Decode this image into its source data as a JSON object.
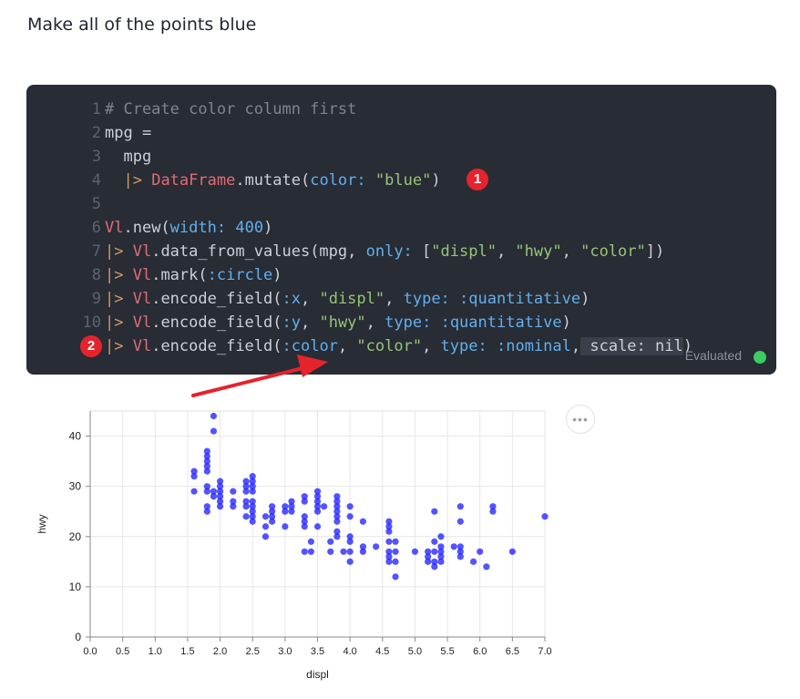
{
  "prompt": "Make all of the points blue",
  "cell": {
    "status": "Evaluated",
    "status_color": "#3dcb63",
    "badges": [
      "1",
      "2"
    ],
    "lines": [
      {
        "n": "1",
        "tokens": [
          [
            "# Create color column first",
            "comment"
          ]
        ]
      },
      {
        "n": "2",
        "tokens": [
          [
            "mpg =",
            "plain"
          ]
        ]
      },
      {
        "n": "3",
        "tokens": [
          [
            "  mpg",
            "plain"
          ]
        ]
      },
      {
        "n": "4",
        "tokens": [
          [
            "  ",
            "plain"
          ],
          [
            "|> ",
            "pipe"
          ],
          [
            "DataFrame",
            "mod"
          ],
          [
            ".mutate(",
            "plain"
          ],
          [
            "color:",
            "key"
          ],
          [
            " ",
            "plain"
          ],
          [
            "\"blue\"",
            "str"
          ],
          [
            ")",
            "plain"
          ]
        ]
      },
      {
        "n": "5",
        "tokens": []
      },
      {
        "n": "6",
        "tokens": [
          [
            "Vl",
            "mod"
          ],
          [
            ".new(",
            "plain"
          ],
          [
            "width:",
            "key"
          ],
          [
            " ",
            "plain"
          ],
          [
            "400",
            "num"
          ],
          [
            ")",
            "plain"
          ]
        ]
      },
      {
        "n": "7",
        "tokens": [
          [
            "|> ",
            "pipe"
          ],
          [
            "Vl",
            "mod"
          ],
          [
            ".data_from_values(mpg, ",
            "plain"
          ],
          [
            "only:",
            "key"
          ],
          [
            " [",
            "plain"
          ],
          [
            "\"displ\"",
            "str"
          ],
          [
            ", ",
            "plain"
          ],
          [
            "\"hwy\"",
            "str"
          ],
          [
            ", ",
            "plain"
          ],
          [
            "\"color\"",
            "str"
          ],
          [
            "])",
            "plain"
          ]
        ]
      },
      {
        "n": "8",
        "tokens": [
          [
            "|> ",
            "pipe"
          ],
          [
            "Vl",
            "mod"
          ],
          [
            ".mark(",
            "plain"
          ],
          [
            ":circle",
            "atom"
          ],
          [
            ")",
            "plain"
          ]
        ]
      },
      {
        "n": "9",
        "tokens": [
          [
            "|> ",
            "pipe"
          ],
          [
            "Vl",
            "mod"
          ],
          [
            ".encode_field(",
            "plain"
          ],
          [
            ":x",
            "atom"
          ],
          [
            ", ",
            "plain"
          ],
          [
            "\"displ\"",
            "str"
          ],
          [
            ", ",
            "plain"
          ],
          [
            "type:",
            "key"
          ],
          [
            " ",
            "plain"
          ],
          [
            ":quantitative",
            "atom"
          ],
          [
            ")",
            "plain"
          ]
        ]
      },
      {
        "n": "10",
        "tokens": [
          [
            "|> ",
            "pipe"
          ],
          [
            "Vl",
            "mod"
          ],
          [
            ".encode_field(",
            "plain"
          ],
          [
            ":y",
            "atom"
          ],
          [
            ", ",
            "plain"
          ],
          [
            "\"hwy\"",
            "str"
          ],
          [
            ", ",
            "plain"
          ],
          [
            "type:",
            "key"
          ],
          [
            " ",
            "plain"
          ],
          [
            ":quantitative",
            "atom"
          ],
          [
            ")",
            "plain"
          ]
        ]
      },
      {
        "n": "11",
        "tokens": [
          [
            "|> ",
            "pipe"
          ],
          [
            "Vl",
            "mod"
          ],
          [
            ".encode_field(",
            "plain"
          ],
          [
            ":color",
            "atom"
          ],
          [
            ", ",
            "plain"
          ],
          [
            "\"color\"",
            "str"
          ],
          [
            ", ",
            "plain"
          ],
          [
            "type:",
            "key"
          ],
          [
            " ",
            "plain"
          ],
          [
            ":nominal",
            "atom"
          ],
          [
            ",",
            "plain"
          ],
          [
            " scale: nil",
            "hl"
          ],
          [
            ")",
            "plain"
          ]
        ]
      }
    ]
  },
  "chart_data": {
    "type": "scatter",
    "xlabel": "displ",
    "ylabel": "hwy",
    "xlim": [
      0,
      7
    ],
    "ylim": [
      0,
      45
    ],
    "xticks": [
      "0.0",
      "0.5",
      "1.0",
      "1.5",
      "2.0",
      "2.5",
      "3.0",
      "3.5",
      "4.0",
      "4.5",
      "5.0",
      "5.5",
      "6.0",
      "6.5",
      "7.0"
    ],
    "yticks": [
      "0",
      "10",
      "20",
      "30",
      "40"
    ],
    "grid": true,
    "point_color": "#1a1aff",
    "points": [
      [
        1.6,
        33
      ],
      [
        1.6,
        32
      ],
      [
        1.6,
        29
      ],
      [
        1.8,
        37
      ],
      [
        1.8,
        36
      ],
      [
        1.8,
        35
      ],
      [
        1.8,
        34
      ],
      [
        1.8,
        33
      ],
      [
        1.8,
        30
      ],
      [
        1.8,
        29
      ],
      [
        1.8,
        26
      ],
      [
        1.8,
        25
      ],
      [
        1.9,
        44
      ],
      [
        1.9,
        41
      ],
      [
        1.9,
        29
      ],
      [
        1.9,
        28
      ],
      [
        2.0,
        31
      ],
      [
        2.0,
        30
      ],
      [
        2.0,
        29
      ],
      [
        2.0,
        28
      ],
      [
        2.0,
        27
      ],
      [
        2.0,
        26
      ],
      [
        2.2,
        29
      ],
      [
        2.2,
        27
      ],
      [
        2.2,
        26
      ],
      [
        2.4,
        31
      ],
      [
        2.4,
        30
      ],
      [
        2.4,
        29
      ],
      [
        2.4,
        27
      ],
      [
        2.4,
        26
      ],
      [
        2.4,
        24
      ],
      [
        2.5,
        32
      ],
      [
        2.5,
        31
      ],
      [
        2.5,
        30
      ],
      [
        2.5,
        29
      ],
      [
        2.5,
        27
      ],
      [
        2.5,
        26
      ],
      [
        2.5,
        25
      ],
      [
        2.5,
        24
      ],
      [
        2.5,
        23
      ],
      [
        2.7,
        24
      ],
      [
        2.7,
        22
      ],
      [
        2.7,
        20
      ],
      [
        2.8,
        26
      ],
      [
        2.8,
        25
      ],
      [
        2.8,
        24
      ],
      [
        2.8,
        23
      ],
      [
        3.0,
        26
      ],
      [
        3.0,
        25
      ],
      [
        3.0,
        22
      ],
      [
        3.1,
        27
      ],
      [
        3.1,
        26
      ],
      [
        3.1,
        25
      ],
      [
        3.3,
        28
      ],
      [
        3.3,
        27
      ],
      [
        3.3,
        24
      ],
      [
        3.3,
        23
      ],
      [
        3.3,
        22
      ],
      [
        3.3,
        17
      ],
      [
        3.4,
        19
      ],
      [
        3.4,
        17
      ],
      [
        3.5,
        29
      ],
      [
        3.5,
        28
      ],
      [
        3.5,
        27
      ],
      [
        3.5,
        26
      ],
      [
        3.5,
        25
      ],
      [
        3.5,
        22
      ],
      [
        3.6,
        26
      ],
      [
        3.7,
        19
      ],
      [
        3.7,
        17
      ],
      [
        3.8,
        28
      ],
      [
        3.8,
        27
      ],
      [
        3.8,
        26
      ],
      [
        3.8,
        25
      ],
      [
        3.8,
        24
      ],
      [
        3.8,
        23
      ],
      [
        3.8,
        21
      ],
      [
        3.8,
        20
      ],
      [
        3.9,
        17
      ],
      [
        4.0,
        26
      ],
      [
        4.0,
        24
      ],
      [
        4.0,
        20
      ],
      [
        4.0,
        19
      ],
      [
        4.0,
        17
      ],
      [
        4.0,
        15
      ],
      [
        4.2,
        23
      ],
      [
        4.2,
        18
      ],
      [
        4.2,
        17
      ],
      [
        4.4,
        18
      ],
      [
        4.6,
        23
      ],
      [
        4.6,
        22
      ],
      [
        4.6,
        21
      ],
      [
        4.6,
        19
      ],
      [
        4.6,
        17
      ],
      [
        4.6,
        16
      ],
      [
        4.6,
        15
      ],
      [
        4.7,
        19
      ],
      [
        4.7,
        17
      ],
      [
        4.7,
        15
      ],
      [
        4.7,
        12
      ],
      [
        5.0,
        17
      ],
      [
        5.2,
        17
      ],
      [
        5.2,
        16
      ],
      [
        5.2,
        15
      ],
      [
        5.3,
        25
      ],
      [
        5.3,
        19
      ],
      [
        5.3,
        17
      ],
      [
        5.3,
        15
      ],
      [
        5.3,
        14
      ],
      [
        5.4,
        20
      ],
      [
        5.4,
        18
      ],
      [
        5.4,
        17
      ],
      [
        5.4,
        16
      ],
      [
        5.4,
        15
      ],
      [
        5.6,
        18
      ],
      [
        5.7,
        26
      ],
      [
        5.7,
        23
      ],
      [
        5.7,
        18
      ],
      [
        5.7,
        17
      ],
      [
        5.7,
        16
      ],
      [
        5.9,
        15
      ],
      [
        6.0,
        17
      ],
      [
        6.1,
        14
      ],
      [
        6.2,
        26
      ],
      [
        6.2,
        25
      ],
      [
        6.5,
        17
      ],
      [
        7.0,
        24
      ]
    ]
  }
}
